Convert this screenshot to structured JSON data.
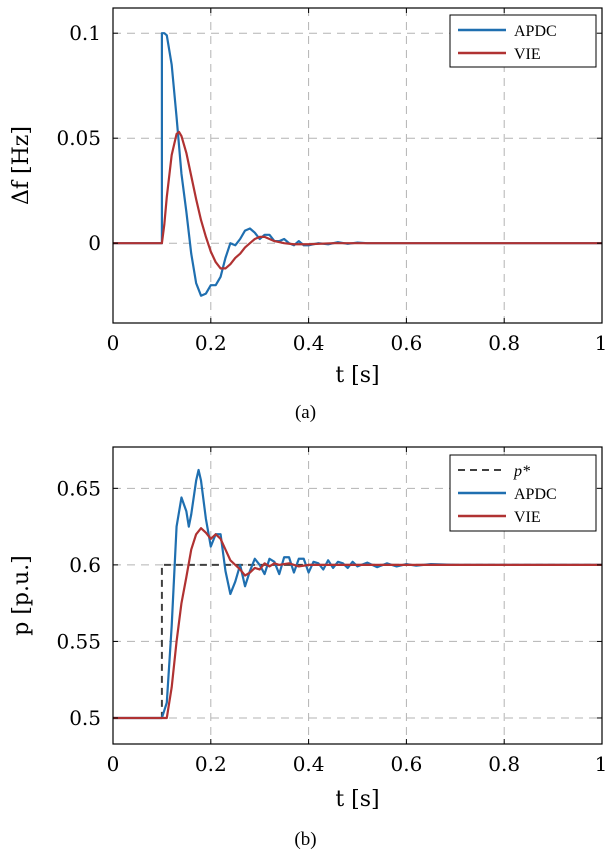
{
  "chart_data": [
    {
      "type": "line",
      "caption": "(a)",
      "xlabel": "t [s]",
      "ylabel": "Δf [Hz]",
      "xlim": [
        0,
        1
      ],
      "ylim": [
        -0.038,
        0.112
      ],
      "xticks": [
        0,
        0.2,
        0.4,
        0.6,
        0.8,
        1
      ],
      "xtick_labels": [
        "0",
        "0.2",
        "0.4",
        "0.6",
        "0.8",
        "1"
      ],
      "yticks": [
        0,
        0.05,
        0.1
      ],
      "ytick_labels": [
        "0",
        "0.05",
        "0.1"
      ],
      "grid": true,
      "legend": "top-right",
      "series": [
        {
          "name": "APDC",
          "color": "#1f6fb0",
          "style": "solid",
          "points": [
            [
              0,
              0
            ],
            [
              0.1,
              0
            ],
            [
              0.1,
              0.1
            ],
            [
              0.105,
              0.1
            ],
            [
              0.11,
              0.099
            ],
            [
              0.12,
              0.085
            ],
            [
              0.13,
              0.06
            ],
            [
              0.14,
              0.033
            ],
            [
              0.15,
              0.015
            ],
            [
              0.16,
              -0.005
            ],
            [
              0.17,
              -0.019
            ],
            [
              0.18,
              -0.025
            ],
            [
              0.19,
              -0.024
            ],
            [
              0.2,
              -0.02
            ],
            [
              0.21,
              -0.02
            ],
            [
              0.22,
              -0.016
            ],
            [
              0.23,
              -0.007
            ],
            [
              0.24,
              0
            ],
            [
              0.25,
              -0.001
            ],
            [
              0.26,
              0.002
            ],
            [
              0.27,
              0.006
            ],
            [
              0.28,
              0.007
            ],
            [
              0.29,
              0.005
            ],
            [
              0.3,
              0.002
            ],
            [
              0.31,
              0.004
            ],
            [
              0.32,
              0.004
            ],
            [
              0.33,
              0.001
            ],
            [
              0.34,
              0.001
            ],
            [
              0.35,
              0.002
            ],
            [
              0.36,
              0
            ],
            [
              0.37,
              -0.001
            ],
            [
              0.38,
              0.001
            ],
            [
              0.39,
              -0.001
            ],
            [
              0.4,
              -0.001
            ],
            [
              0.42,
              0
            ],
            [
              0.44,
              -0.0005
            ],
            [
              0.46,
              0.0005
            ],
            [
              0.48,
              -0.0003
            ],
            [
              0.5,
              0.0003
            ],
            [
              0.52,
              0
            ],
            [
              0.55,
              0
            ],
            [
              0.6,
              0
            ],
            [
              1,
              0
            ]
          ]
        },
        {
          "name": "VIE",
          "color": "#b03232",
          "style": "solid",
          "points": [
            [
              0,
              0
            ],
            [
              0.1,
              0
            ],
            [
              0.105,
              0.009
            ],
            [
              0.11,
              0.022
            ],
            [
              0.12,
              0.042
            ],
            [
              0.13,
              0.052
            ],
            [
              0.135,
              0.053
            ],
            [
              0.14,
              0.051
            ],
            [
              0.15,
              0.043
            ],
            [
              0.16,
              0.032
            ],
            [
              0.17,
              0.021
            ],
            [
              0.18,
              0.011
            ],
            [
              0.19,
              0.003
            ],
            [
              0.2,
              -0.004
            ],
            [
              0.21,
              -0.009
            ],
            [
              0.22,
              -0.012
            ],
            [
              0.23,
              -0.012
            ],
            [
              0.24,
              -0.01
            ],
            [
              0.25,
              -0.007
            ],
            [
              0.26,
              -0.005
            ],
            [
              0.27,
              -0.002
            ],
            [
              0.28,
              0
            ],
            [
              0.29,
              0.002
            ],
            [
              0.3,
              0.003
            ],
            [
              0.31,
              0.003
            ],
            [
              0.32,
              0.002
            ],
            [
              0.33,
              0.001
            ],
            [
              0.35,
              0
            ],
            [
              0.37,
              -0.0005
            ],
            [
              0.4,
              -0.0005
            ],
            [
              0.45,
              0
            ],
            [
              1,
              0
            ]
          ]
        }
      ]
    },
    {
      "type": "line",
      "caption": "(b)",
      "xlabel": "t [s]",
      "ylabel": "p [p.u.]",
      "xlim": [
        0,
        1
      ],
      "ylim": [
        0.483,
        0.677
      ],
      "xticks": [
        0,
        0.2,
        0.4,
        0.6,
        0.8,
        1
      ],
      "xtick_labels": [
        "0",
        "0.2",
        "0.4",
        "0.6",
        "0.8",
        "1"
      ],
      "yticks": [
        0.5,
        0.55,
        0.6,
        0.65
      ],
      "ytick_labels": [
        "0.5",
        "0.55",
        "0.6",
        "0.65"
      ],
      "grid": true,
      "legend": "top-right",
      "series": [
        {
          "name": "p*",
          "color": "#404040",
          "style": "dashed",
          "points": [
            [
              0,
              0.5
            ],
            [
              0.1,
              0.5
            ],
            [
              0.1,
              0.6
            ],
            [
              1,
              0.6
            ]
          ]
        },
        {
          "name": "APDC",
          "color": "#1f6fb0",
          "style": "solid",
          "points": [
            [
              0,
              0.5
            ],
            [
              0.1,
              0.5
            ],
            [
              0.11,
              0.51
            ],
            [
              0.12,
              0.56
            ],
            [
              0.13,
              0.625
            ],
            [
              0.14,
              0.644
            ],
            [
              0.15,
              0.635
            ],
            [
              0.155,
              0.625
            ],
            [
              0.16,
              0.633
            ],
            [
              0.17,
              0.655
            ],
            [
              0.175,
              0.662
            ],
            [
              0.18,
              0.655
            ],
            [
              0.19,
              0.63
            ],
            [
              0.2,
              0.612
            ],
            [
              0.21,
              0.62
            ],
            [
              0.22,
              0.62
            ],
            [
              0.23,
              0.596
            ],
            [
              0.24,
              0.581
            ],
            [
              0.25,
              0.589
            ],
            [
              0.26,
              0.6
            ],
            [
              0.27,
              0.586
            ],
            [
              0.28,
              0.596
            ],
            [
              0.29,
              0.604
            ],
            [
              0.3,
              0.6
            ],
            [
              0.31,
              0.594
            ],
            [
              0.32,
              0.604
            ],
            [
              0.33,
              0.602
            ],
            [
              0.34,
              0.594
            ],
            [
              0.35,
              0.605
            ],
            [
              0.36,
              0.605
            ],
            [
              0.37,
              0.595
            ],
            [
              0.38,
              0.604
            ],
            [
              0.39,
              0.604
            ],
            [
              0.4,
              0.595
            ],
            [
              0.41,
              0.602
            ],
            [
              0.42,
              0.601
            ],
            [
              0.43,
              0.597
            ],
            [
              0.44,
              0.603
            ],
            [
              0.45,
              0.598
            ],
            [
              0.46,
              0.602
            ],
            [
              0.47,
              0.601
            ],
            [
              0.48,
              0.598
            ],
            [
              0.49,
              0.602
            ],
            [
              0.5,
              0.599
            ],
            [
              0.52,
              0.6015
            ],
            [
              0.54,
              0.5985
            ],
            [
              0.56,
              0.601
            ],
            [
              0.58,
              0.599
            ],
            [
              0.6,
              0.6005
            ],
            [
              0.62,
              0.5995
            ],
            [
              0.65,
              0.6005
            ],
            [
              0.7,
              0.6
            ],
            [
              1,
              0.6
            ]
          ]
        },
        {
          "name": "VIE",
          "color": "#b03232",
          "style": "solid",
          "points": [
            [
              0,
              0.5
            ],
            [
              0.11,
              0.5
            ],
            [
              0.12,
              0.52
            ],
            [
              0.13,
              0.55
            ],
            [
              0.14,
              0.575
            ],
            [
              0.15,
              0.592
            ],
            [
              0.16,
              0.61
            ],
            [
              0.17,
              0.62
            ],
            [
              0.18,
              0.624
            ],
            [
              0.19,
              0.621
            ],
            [
              0.2,
              0.617
            ],
            [
              0.21,
              0.62
            ],
            [
              0.22,
              0.617
            ],
            [
              0.23,
              0.61
            ],
            [
              0.24,
              0.603
            ],
            [
              0.25,
              0.6
            ],
            [
              0.26,
              0.597
            ],
            [
              0.27,
              0.593
            ],
            [
              0.28,
              0.595
            ],
            [
              0.29,
              0.598
            ],
            [
              0.3,
              0.597
            ],
            [
              0.31,
              0.601
            ],
            [
              0.32,
              0.599
            ],
            [
              0.33,
              0.601
            ],
            [
              0.34,
              0.6
            ],
            [
              0.36,
              0.601
            ],
            [
              0.38,
              0.599
            ],
            [
              0.4,
              0.6
            ],
            [
              0.45,
              0.6
            ],
            [
              1,
              0.6
            ]
          ]
        }
      ]
    }
  ]
}
